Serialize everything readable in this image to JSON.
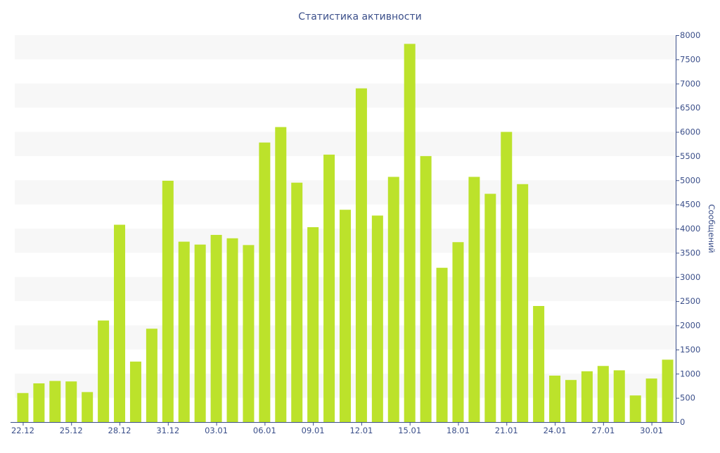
{
  "chart_data": {
    "type": "bar",
    "title": "Статистика активности",
    "ylabel": "Сообщений",
    "xlabel": "",
    "ylim": [
      0,
      8000
    ],
    "y_ticks": [
      0,
      500,
      1000,
      1500,
      2000,
      2500,
      3000,
      3500,
      4000,
      4500,
      5000,
      5500,
      6000,
      6500,
      7000,
      7500,
      8000
    ],
    "y_axis_position": "right",
    "grid": "alternating horizontal bands",
    "categories": [
      "22.12",
      "23.12",
      "24.12",
      "25.12",
      "26.12",
      "27.12",
      "28.12",
      "29.12",
      "30.12",
      "31.12",
      "01.01",
      "02.01",
      "03.01",
      "04.01",
      "05.01",
      "06.01",
      "07.01",
      "08.01",
      "09.01",
      "10.01",
      "11.01",
      "12.01",
      "13.01",
      "14.01",
      "15.01",
      "16.01",
      "17.01",
      "18.01",
      "19.01",
      "20.01",
      "21.01",
      "22.01",
      "23.01",
      "24.01",
      "25.01",
      "26.01",
      "27.01",
      "28.01",
      "29.01",
      "30.01",
      "31.01"
    ],
    "x_tick_labels": [
      "22.12",
      "25.12",
      "28.12",
      "31.12",
      "03.01",
      "06.01",
      "09.01",
      "12.01",
      "15.01",
      "18.01",
      "21.01",
      "24.01",
      "27.01",
      "30.01"
    ],
    "x_tick_label_every": 3,
    "values": [
      600,
      800,
      850,
      840,
      620,
      2100,
      4080,
      1250,
      1930,
      4990,
      3730,
      3670,
      3870,
      3800,
      3660,
      5780,
      6100,
      4950,
      4030,
      5530,
      4390,
      6900,
      4270,
      5070,
      7820,
      5500,
      3190,
      3720,
      5070,
      4720,
      6000,
      4920,
      2400,
      960,
      870,
      1050,
      1160,
      1070,
      550,
      900,
      1290
    ],
    "colors": {
      "bar": "#bce22b",
      "band": "#f7f7f7",
      "axis": "#3b4f8a",
      "text": "#3b4f8a"
    }
  }
}
